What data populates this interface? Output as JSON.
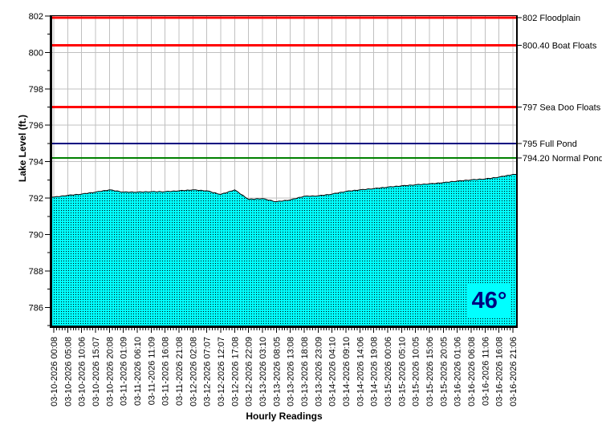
{
  "chart_data": {
    "type": "area",
    "title": "",
    "xlabel": "Hourly Readings",
    "ylabel": "Lake Level (ft.)",
    "ylim": [
      785,
      802
    ],
    "yticks": [
      786,
      788,
      790,
      792,
      794,
      796,
      798,
      800,
      802
    ],
    "grid": true,
    "x_labels": [
      "03-10-2026 00:08",
      "03-10-2026 05:08",
      "03-10-2026 10:06",
      "03-10-2026 15:07",
      "03-10-2026 20:08",
      "03-11-2026 01:09",
      "03-11-2026 06:10",
      "03-11-2026 11:09",
      "03-11-2026 16:08",
      "03-11-2026 21:08",
      "03-12-2026 02:08",
      "03-12-2026 07:07",
      "03-12-2026 12:07",
      "03-12-2026 17:08",
      "03-12-2026 22:09",
      "03-13-2026 03:10",
      "03-13-2026 08:05",
      "03-13-2026 13:08",
      "03-13-2026 18:08",
      "03-13-2026 23:09",
      "03-14-2026 04:10",
      "03-14-2026 09:10",
      "03-14-2026 14:06",
      "03-14-2026 19:08",
      "03-15-2026 00:06",
      "03-15-2026 05:10",
      "03-15-2026 10:05",
      "03-15-2026 15:06",
      "03-15-2026 20:05",
      "03-16-2026 01:06",
      "03-16-2026 06:08",
      "03-16-2026 11:06",
      "03-16-2026 16:08",
      "03-16-2026 21:06"
    ],
    "series": [
      {
        "name": "Lake Level",
        "values": [
          792.05,
          792.15,
          792.22,
          792.33,
          792.45,
          792.33,
          792.33,
          792.35,
          792.35,
          792.4,
          792.45,
          792.4,
          792.2,
          792.45,
          791.93,
          791.97,
          791.8,
          791.9,
          792.1,
          792.12,
          792.22,
          792.37,
          792.45,
          792.52,
          792.6,
          792.67,
          792.73,
          792.78,
          792.85,
          792.93,
          793.0,
          793.05,
          793.15,
          793.3
        ],
        "fill": "#00FFFF",
        "fill_pattern": "black-dots",
        "line_color": "#000000"
      }
    ],
    "ref_lines": [
      {
        "value": 802.0,
        "label": "802 Floodplain",
        "color": "#FF0000",
        "width": 3
      },
      {
        "value": 800.4,
        "label": "800.40 Boat Floats",
        "color": "#FF0000",
        "width": 3
      },
      {
        "value": 797.0,
        "label": "797 Sea Doo Floats",
        "color": "#FF0000",
        "width": 3
      },
      {
        "value": 795.0,
        "label": "795 Full Pond",
        "color": "#000080",
        "width": 2
      },
      {
        "value": 794.2,
        "label": "794.20 Normal Pond",
        "color": "#008000",
        "width": 2
      }
    ],
    "temperature_badge": "46°"
  },
  "colors": {
    "background": "#FFFFFF",
    "grid": "#C0C0C0",
    "axis": "#000000",
    "series_fill": "#00FFFF",
    "series_dot": "#000000",
    "temperature_text": "#000080",
    "temperature_bg": "#00FFFF"
  }
}
